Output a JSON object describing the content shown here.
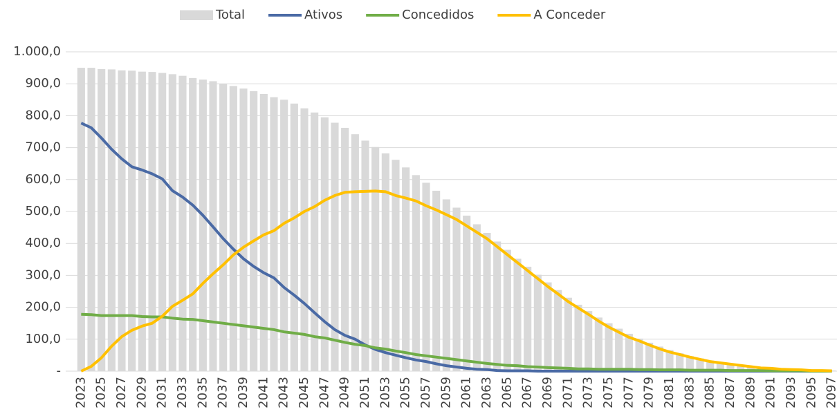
{
  "chart_data": {
    "type": "combo",
    "categories": [
      "2023",
      null,
      "2025",
      null,
      "2027",
      null,
      "2029",
      null,
      "2031",
      null,
      "2033",
      null,
      "2035",
      null,
      "2037",
      null,
      "2039",
      null,
      "2041",
      null,
      "2043",
      null,
      "2045",
      null,
      "2047",
      null,
      "2049",
      null,
      "2051",
      null,
      "2053",
      null,
      "2055",
      null,
      "2057",
      null,
      "2059",
      null,
      "2061",
      null,
      "2063",
      null,
      "2065",
      null,
      "2067",
      null,
      "2069",
      null,
      "2071",
      null,
      "2073",
      null,
      "2075",
      null,
      "2077",
      null,
      "2079",
      null,
      "2081",
      null,
      "2083",
      null,
      "2085",
      null,
      "2087",
      null,
      "2089",
      null,
      "2091",
      null,
      "2093",
      null,
      "2095",
      null,
      "2097"
    ],
    "series": [
      {
        "name": "Total",
        "type": "bar",
        "color": "#d9d9d9",
        "values": [
          950,
          950,
          946,
          945,
          942,
          941,
          938,
          937,
          934,
          930,
          925,
          918,
          913,
          908,
          900,
          893,
          885,
          877,
          868,
          858,
          850,
          838,
          823,
          810,
          795,
          778,
          762,
          742,
          722,
          702,
          682,
          662,
          638,
          614,
          590,
          565,
          538,
          512,
          487,
          460,
          433,
          406,
          380,
          352,
          327,
          302,
          278,
          254,
          230,
          208,
          188,
          168,
          150,
          133,
          117,
          102,
          89,
          77,
          66,
          56,
          47,
          40,
          33,
          27,
          22,
          18,
          14,
          11,
          9,
          7,
          5,
          4,
          3,
          2,
          2
        ]
      },
      {
        "name": "Ativos",
        "type": "line",
        "color": "#4a6aa5",
        "values": [
          777,
          762,
          730,
          695,
          665,
          640,
          630,
          618,
          602,
          565,
          545,
          520,
          488,
          452,
          415,
          382,
          352,
          328,
          308,
          292,
          262,
          238,
          212,
          183,
          155,
          130,
          112,
          100,
          82,
          68,
          58,
          50,
          42,
          35,
          30,
          23,
          17,
          13,
          9,
          6,
          5,
          2,
          1,
          1,
          1,
          0,
          0,
          0,
          0,
          0,
          0,
          0,
          0,
          0,
          0,
          0,
          0,
          0,
          0,
          0,
          0,
          0,
          0,
          0,
          0,
          0,
          0,
          0,
          0,
          0,
          0,
          0,
          0,
          0,
          0
        ]
      },
      {
        "name": "Concedidos",
        "type": "line",
        "color": "#70ad47",
        "values": [
          178,
          177,
          174,
          174,
          174,
          174,
          171,
          170,
          170,
          166,
          163,
          162,
          158,
          154,
          150,
          146,
          142,
          138,
          134,
          130,
          123,
          119,
          115,
          108,
          104,
          97,
          90,
          84,
          80,
          73,
          69,
          63,
          58,
          52,
          48,
          44,
          40,
          36,
          32,
          28,
          24,
          21,
          18,
          17,
          14,
          13,
          11,
          10,
          9,
          7,
          7,
          6,
          6,
          6,
          6,
          5,
          5,
          4,
          4,
          4,
          3,
          3,
          3,
          3,
          2,
          2,
          2,
          2,
          1,
          1,
          1,
          1,
          0,
          0,
          0
        ]
      },
      {
        "name": "A Conceder",
        "type": "line",
        "color": "#ffc000",
        "values": [
          0,
          15,
          42,
          78,
          108,
          128,
          141,
          150,
          172,
          203,
          222,
          242,
          275,
          305,
          333,
          364,
          388,
          408,
          427,
          440,
          463,
          480,
          500,
          515,
          535,
          550,
          560,
          562,
          563,
          564,
          562,
          550,
          542,
          533,
          518,
          505,
          490,
          475,
          455,
          435,
          415,
          390,
          365,
          340,
          315,
          290,
          265,
          242,
          218,
          198,
          178,
          157,
          138,
          122,
          106,
          95,
          82,
          70,
          60,
          52,
          44,
          37,
          30,
          26,
          22,
          18,
          14,
          10,
          9,
          6,
          5,
          4,
          2,
          2,
          1
        ]
      }
    ],
    "ylim": [
      0,
      1000
    ],
    "yticks": [
      {
        "value": 0,
        "label": "-"
      },
      {
        "value": 100,
        "label": "100,0"
      },
      {
        "value": 200,
        "label": "200,0"
      },
      {
        "value": 300,
        "label": "300,0"
      },
      {
        "value": 400,
        "label": "400,0"
      },
      {
        "value": 500,
        "label": "500,0"
      },
      {
        "value": 600,
        "label": "600,0"
      },
      {
        "value": 700,
        "label": "700,0"
      },
      {
        "value": 800,
        "label": "800,0"
      },
      {
        "value": 900,
        "label": "900,0"
      },
      {
        "value": 1000,
        "label": "1.000,0"
      }
    ],
    "grid": true,
    "legend": "top"
  }
}
